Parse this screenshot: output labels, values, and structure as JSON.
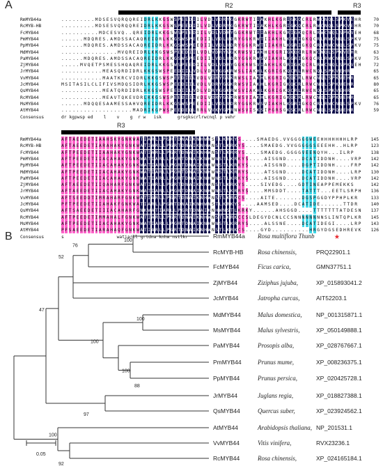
{
  "panel_a": {
    "label": "A",
    "region_top_label": "R2",
    "region_top_right_label": "R3",
    "region_bottom_label": "R3",
    "block1": {
      "rows": [
        {
          "name": "RmMYB44a",
          "seq": ".........MDSESVQRQQREIDRLKKGSWSPEEDIILVDLVDRYGGKRWTIIAKHLKGRIGKQCRLRWCNQLSPKVEHR",
          "num": "70"
        },
        {
          "name": "RcMYB-HB",
          "seq": ".........MDSESVQRQQREIDRLKKGSWSPEEDIILVDLVDRYGGKRWTIIAKHLKGRIGKQCRLRWCNQLSPKVEHR",
          "num": "70"
        },
        {
          "name": "FcMYB44",
          "seq": "..........MDCESVQ..QREIDRLKKGSWSPEEDIILVDLVDRYGGKRWTIIAKHLKGRIGKQCRLRWCNQLSPKVEHR",
          "num": "68"
        },
        {
          "name": "PmMYB44",
          "seq": "......MDQRES.AMDSSACAQREIDRLKKGSWSPEEDIILVDLVDRYGGKRWTIIAKHLKGRIGKQCRLRWCNQLSPKVEHR",
          "num": "75"
        },
        {
          "name": "PpMYB44",
          "seq": "......MDQRES.AMDSSACAQREIDRLKKGSWSPEEDIILVDLVDRYGGKRWTIIAKHLKGRIGKQCRLRWCNQLSPKVEHR",
          "num": "75"
        },
        {
          "name": "MdMYB44",
          "seq": "...............MVQREIDRLKKGSWSPEEDIILVDLVDRYGGKRWSVIAKHLKGRIGKQCRLRWCNQLSPKVEHR",
          "num": "63"
        },
        {
          "name": "PaMYB44",
          "seq": "......MDQRES.AMDSSACAQREIDRLKKGSWSPEEDIILVDLVDRYGGKRWSVIAKHLKGRIGKQCRLRWCNQLSPKVEHR",
          "num": "75"
        },
        {
          "name": "ZjMYB44",
          "seq": ".....MVQETPSMESSHQAQREIDRLKKGSWSPEEDIILVDLVDRYGGKRWSVIAKHLKGRIGKQCRLRWCNQLSPKVEHR",
          "num": "72"
        },
        {
          "name": "JrMYB44",
          "seq": "...........MEASQRDIDRLKKGSWSPEEDIILVDLVDRYGGKRWSLIAKHLKGRIGKQCRLRWCNQLSPKVEHR",
          "num": "65"
        },
        {
          "name": "VvMYB44",
          "seq": "...........MAATKRCVIDRLKKGSWSPEEDIILVDLVDRYGGKRWSLIAKHLKGRIGKQCRLRWCNQLSPKVEHR",
          "num": "65"
        },
        {
          "name": "JcMYB44",
          "seq": "MSITASILCLIFIVSMDQSIDRLKKGSWSPEEDIILVDLVDRYGGKRWSVIAKHLKGRIGKQCRLRWCNQLSPKVEHR",
          "num": "80"
        },
        {
          "name": "QsMYB44",
          "seq": "...........MEATQRDIDRLKKGSWSPEEDIILVDLVDRYGGKRWSVIAKHLKGRIGKQCRLRWCNQLSPKVEHR",
          "num": "65"
        },
        {
          "name": "RcMYB44",
          "seq": "...........MEAVTQKEVDRLKKGSWSPEEDIILVDLVDRYGGKRWSVIAKHLKGRIGKQCRLRWCNQLSPKVEHR",
          "num": "65"
        },
        {
          "name": "MsMYB44",
          "seq": "......MDQQESAAMESSAHVQREIDRLKKGSWSPEEDIILVDLVDRYGGKRWSVIAKHLKGRIGKQCRLRWCNQLSPKVEHR",
          "num": "76"
        },
        {
          "name": "AtMYB44",
          "seq": "...................MADRIKGPWSPEEDEQLRRLVVKYGPRNWSVISKSIPGRSGKSCRLRWCNQLSPQVEHR",
          "num": "59"
        }
      ],
      "consensus_label": "Consensus",
      "consensus": "dr kgpwsp ed    l    v    g  r w   isk      grsgkscrlrwcnql p vehr"
    },
    "block2": {
      "rows": [
        {
          "name": "RmMYB44a",
          "seq": "AFTAEEDETIAAHSKYGNKWATIARLLPGRTDNAIKNHWNSTLKRKYS....SMAEDG.VVGGGGGWEEHHHHHHHLRP",
          "num": "145"
        },
        {
          "name": "RcMYB-HB",
          "seq": "AFTAEEDETIARAHAKYGNKWATIARLLPGRTDNAIKNHWNSTLKRKYS....SMAEDG.VVGGGGGSEEEHH..HLRP",
          "num": "123"
        },
        {
          "name": "FcMYB44",
          "seq": "AFTPEEDETIIAAHAKYGNKWATIARLLPGRTDNAIKNHWNSTLKRRYS....SMAEDG.GGGGVEENQYH...ILRP",
          "num": "138"
        },
        {
          "name": "PmMYB44",
          "seq": "AFTPEEDETIIACAHAKYGNKWATIARLLPGRTDNAIKNHWNSTLKRKYS....AISGND....DCATIDDNH....VRP",
          "num": "142"
        },
        {
          "name": "PpMYB44",
          "seq": "AFTPEEDETIIACAHAKYGNKWATIARLLPGRTDNAIKNHWNSTLKRKYS....AISGND....DGPTIDDNH....FRP",
          "num": "142"
        },
        {
          "name": "MdMYB44",
          "seq": "AFTPEEDETIIACAHAKYGNKWATIARLLPGRTDNAIKNHWNSTLKRRYS....ATSGND....DCATIDDNH....LRP",
          "num": "130"
        },
        {
          "name": "PaMYB44",
          "seq": "AFTPEEDETIIACAHAKYGNKWATIARLLPGRTDNAIKNHWNSTLKRKYS....AISGND....DCATIDDNH....VRP",
          "num": "142"
        },
        {
          "name": "ZjMYB44",
          "seq": "AFTAEEDETIIQAHARFGNKWATIARLLPGRTDNAIKNHWNSTLKRKYS....SIVEDG....GDTINEAPPEMEKKS",
          "num": "142"
        },
        {
          "name": "JrMYB44",
          "seq": "AFTAEEDETIIACAHAKYGNKWATIARLLPGRTDNAIKNHWNSTLKRRYS....MMSDDT....TATTT...EETLSRPHK",
          "num": "136"
        },
        {
          "name": "VvMYB44",
          "seq": "AFTSEEDDTIMRAHARFGNKWATIARLLPGRTDNAIKNHWNSTLKRKCS....AITE.......DGSPGGDYPPHPLKR",
          "num": "133"
        },
        {
          "name": "JcMYB44",
          "seq": "PFTPEEDETIIAHAKFGNKWATIARLLPGRTDNAIKNHWNSTLKRKYS....AAMSED....DCATIDE......TTDR",
          "num": "140"
        },
        {
          "name": "QsMYB44",
          "seq": "AFTSAEEDETIIIACAHARFGNKWATIARLLPGRTDNAIKNHWNSTLKRKY......AHSGGD....TTTTTTTATDESNRPHK",
          "num": "137"
        },
        {
          "name": "RcMYB44",
          "seq": "AFTPEEDETIMMAHALFGNKWATIARLLPGRTDNAIKNHWNSTLKRKCCSLDEGYDCNLCCSNNNNNNNNSLINTQPLKR",
          "num": "145"
        },
        {
          "name": "MsMYB44",
          "seq": "AFTPEEDETIIACAHAKYGNKWATIARLLPGRTDNAIKNHWNSTLKRRYS....ALSSNE....DCATIDEGI....LRP",
          "num": "143"
        },
        {
          "name": "AtMYB44",
          "seq": "PFSAEEDETIARAHAQFGNKWATIARLLPGRTDNAIKNHWNSTLKRKCS....GYD..........HRGYDGSEDHREVKR",
          "num": "126"
        }
      ],
      "consensus_label": "Consensus",
      "consensus": "s                    watiarll grtdna knhw nstlkr"
    }
  },
  "panel_b": {
    "label": "B",
    "leaves": [
      {
        "name": "RmMYB44a",
        "species": "Rosa multiflora Thunb",
        "accession": ""
      },
      {
        "name": "RcMYB-HB",
        "species": "Rosa chinensis,",
        "accession": "PRQ22901.1"
      },
      {
        "name": "FcMYB44",
        "species": "Ficus carica,",
        "accession": "GMN37751.1"
      },
      {
        "name": "ZjMYB44",
        "species": "Ziziphus jujuba,",
        "accession": "XP_015893041.2"
      },
      {
        "name": "JcMYB44",
        "species": "Jatropha curcas,",
        "accession": "AIT52203.1"
      },
      {
        "name": "MdMYB44",
        "species": "Malus domestica,",
        "accession": "NP_001315871.1"
      },
      {
        "name": "MsMYB44",
        "species": "Malus sylvestris,",
        "accession": "XP_050149888.1"
      },
      {
        "name": "PaMYB44",
        "species": "Prosopis alba,",
        "accession": "XP_028767667.1"
      },
      {
        "name": "PmMYB44",
        "species": "Prunus mume,",
        "accession": "XP_008236375.1"
      },
      {
        "name": "PpMYB44",
        "species": "Prunus persica,",
        "accession": "XP_020425728.1"
      },
      {
        "name": "JrMYB44",
        "species": "Juglans regia,",
        "accession": "XP_018827388.1"
      },
      {
        "name": "QsMYB44",
        "species": "Quercus suber,",
        "accession": "XP_023924562.1"
      },
      {
        "name": "AtMYB44",
        "species": "Arabidopsis thaliana,",
        "accession": "NP_201531.1"
      },
      {
        "name": "VvMYB44",
        "species": "Vitis vinifera,",
        "accession": "RVX23236.1"
      },
      {
        "name": "RcMYB44",
        "species": "Rosa chinensis,",
        "accession": "XP_024165184.1"
      }
    ],
    "bootstrap": [
      "100",
      "76",
      "52",
      "47",
      "100",
      "100",
      "100",
      "88",
      "97",
      "100",
      "92"
    ],
    "scale_label": "0.05",
    "star_color": "#e8262c"
  },
  "colors": {
    "dark": "#0b0b4a",
    "pink": "#ff5fc8",
    "cyan": "#3fd7e8"
  }
}
